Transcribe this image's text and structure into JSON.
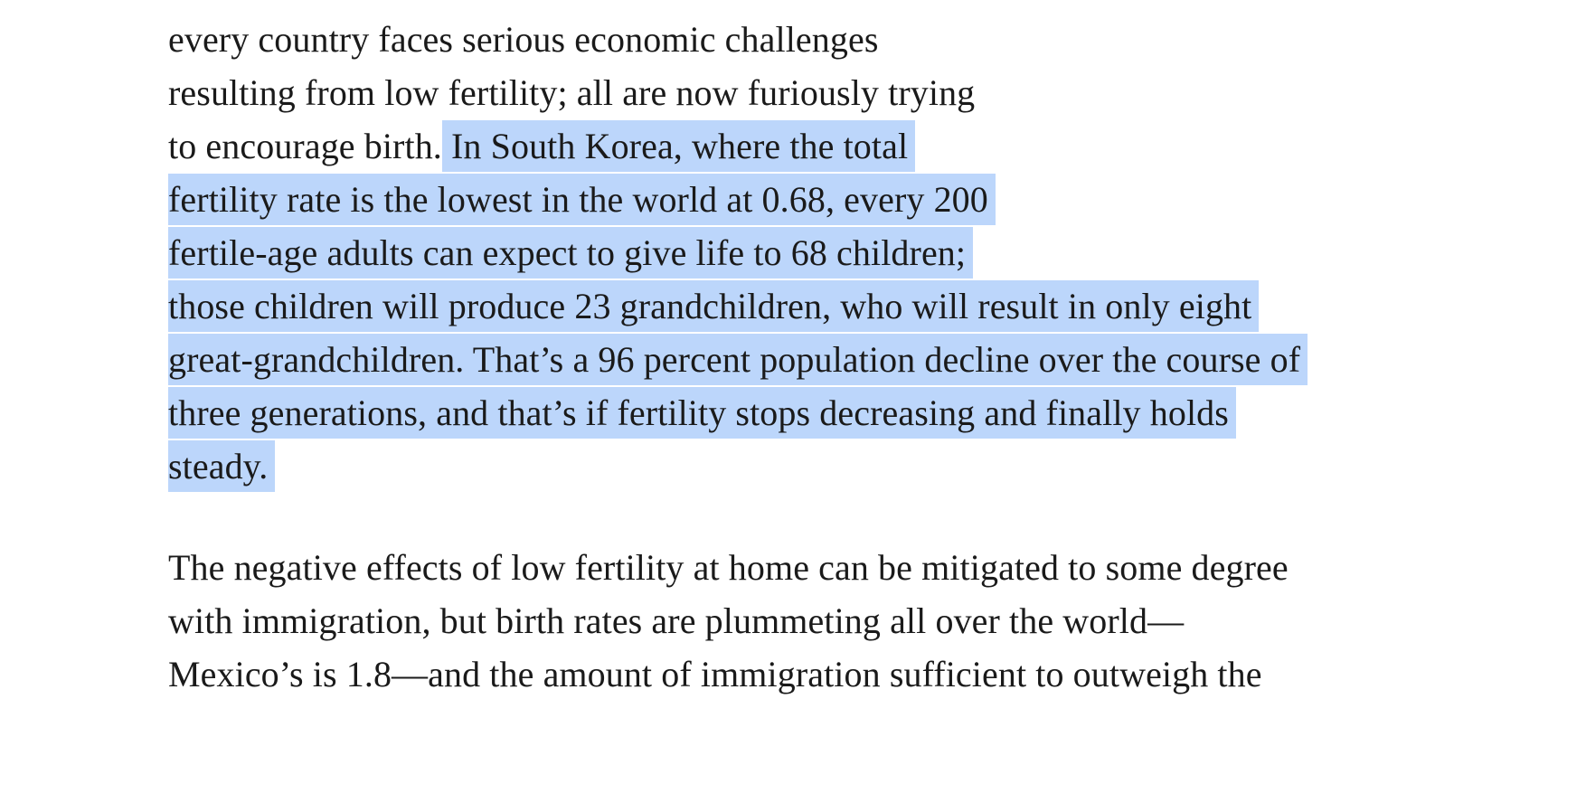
{
  "paragraph_1": {
    "lines": [
      "every country faces serious economic challenges",
      "resulting from low fertility; all are now furiously trying",
      "to encourage birth."
    ],
    "highlighted_lines": [
      "In South Korea, where the total",
      "fertility rate is the lowest in the world at 0.68, every 200",
      "fertile-age adults can expect to give life to 68 children;",
      "those children will produce 23 grandchildren, who will result in only eight",
      "great-grandchildren. That’s a 96 percent population decline over the course of",
      "three generations, and that’s if fertility stops decreasing and finally holds",
      "steady."
    ]
  },
  "paragraph_2": {
    "lines": [
      "The negative effects of low fertility at home can be mitigated to some degree",
      "with immigration, but birth rates are plummeting all over the world—",
      "Mexico’s is 1.8—and the amount of immigration sufficient to outweigh the"
    ]
  },
  "colors": {
    "text": "#1a1a1a",
    "selection": "#bcd6fb",
    "background": "#ffffff"
  }
}
